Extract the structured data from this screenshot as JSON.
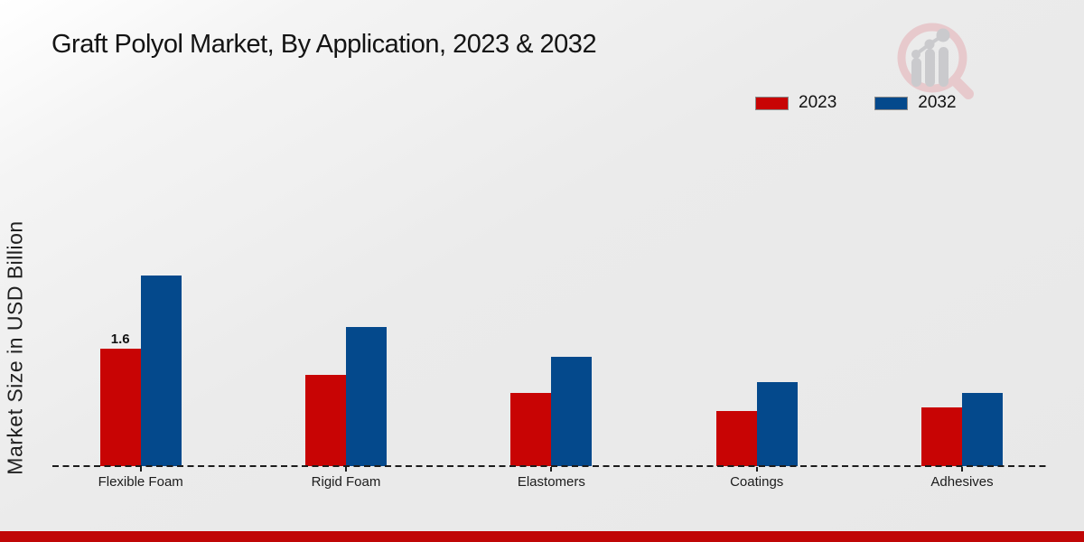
{
  "title": "Graft Polyol Market, By Application, 2023 & 2032",
  "ylabel": "Market Size in USD Billion",
  "colors": {
    "series_2023": "#c80404",
    "series_2032": "#04498c",
    "footer_strip": "#c00606",
    "axis": "#1c1c1c",
    "logo_ring": "#e7c6c9",
    "logo_bars": "#c7c7ca"
  },
  "logo_icon": "magnifier-bar-chart-icon",
  "chart_data": {
    "type": "bar",
    "title": "Graft Polyol Market, By Application, 2023 & 2032",
    "ylabel": "Market Size in USD Billion",
    "xlabel": "",
    "categories": [
      "Flexible Foam",
      "Rigid Foam",
      "Elastomers",
      "Coatings",
      "Adhesives"
    ],
    "series": [
      {
        "name": "2023",
        "color": "#c80404",
        "values": [
          1.6,
          1.25,
          1.0,
          0.75,
          0.8
        ]
      },
      {
        "name": "2032",
        "color": "#04498c",
        "values": [
          2.6,
          1.9,
          1.5,
          1.15,
          1.0
        ]
      }
    ],
    "data_labels": [
      {
        "category_index": 0,
        "series_index": 0,
        "text": "1.6"
      }
    ],
    "ylim": [
      0,
      3.2
    ],
    "grid": false,
    "y_axis_ticks_visible": false,
    "legend_position": "top-right",
    "baseline_style": "dashed"
  }
}
